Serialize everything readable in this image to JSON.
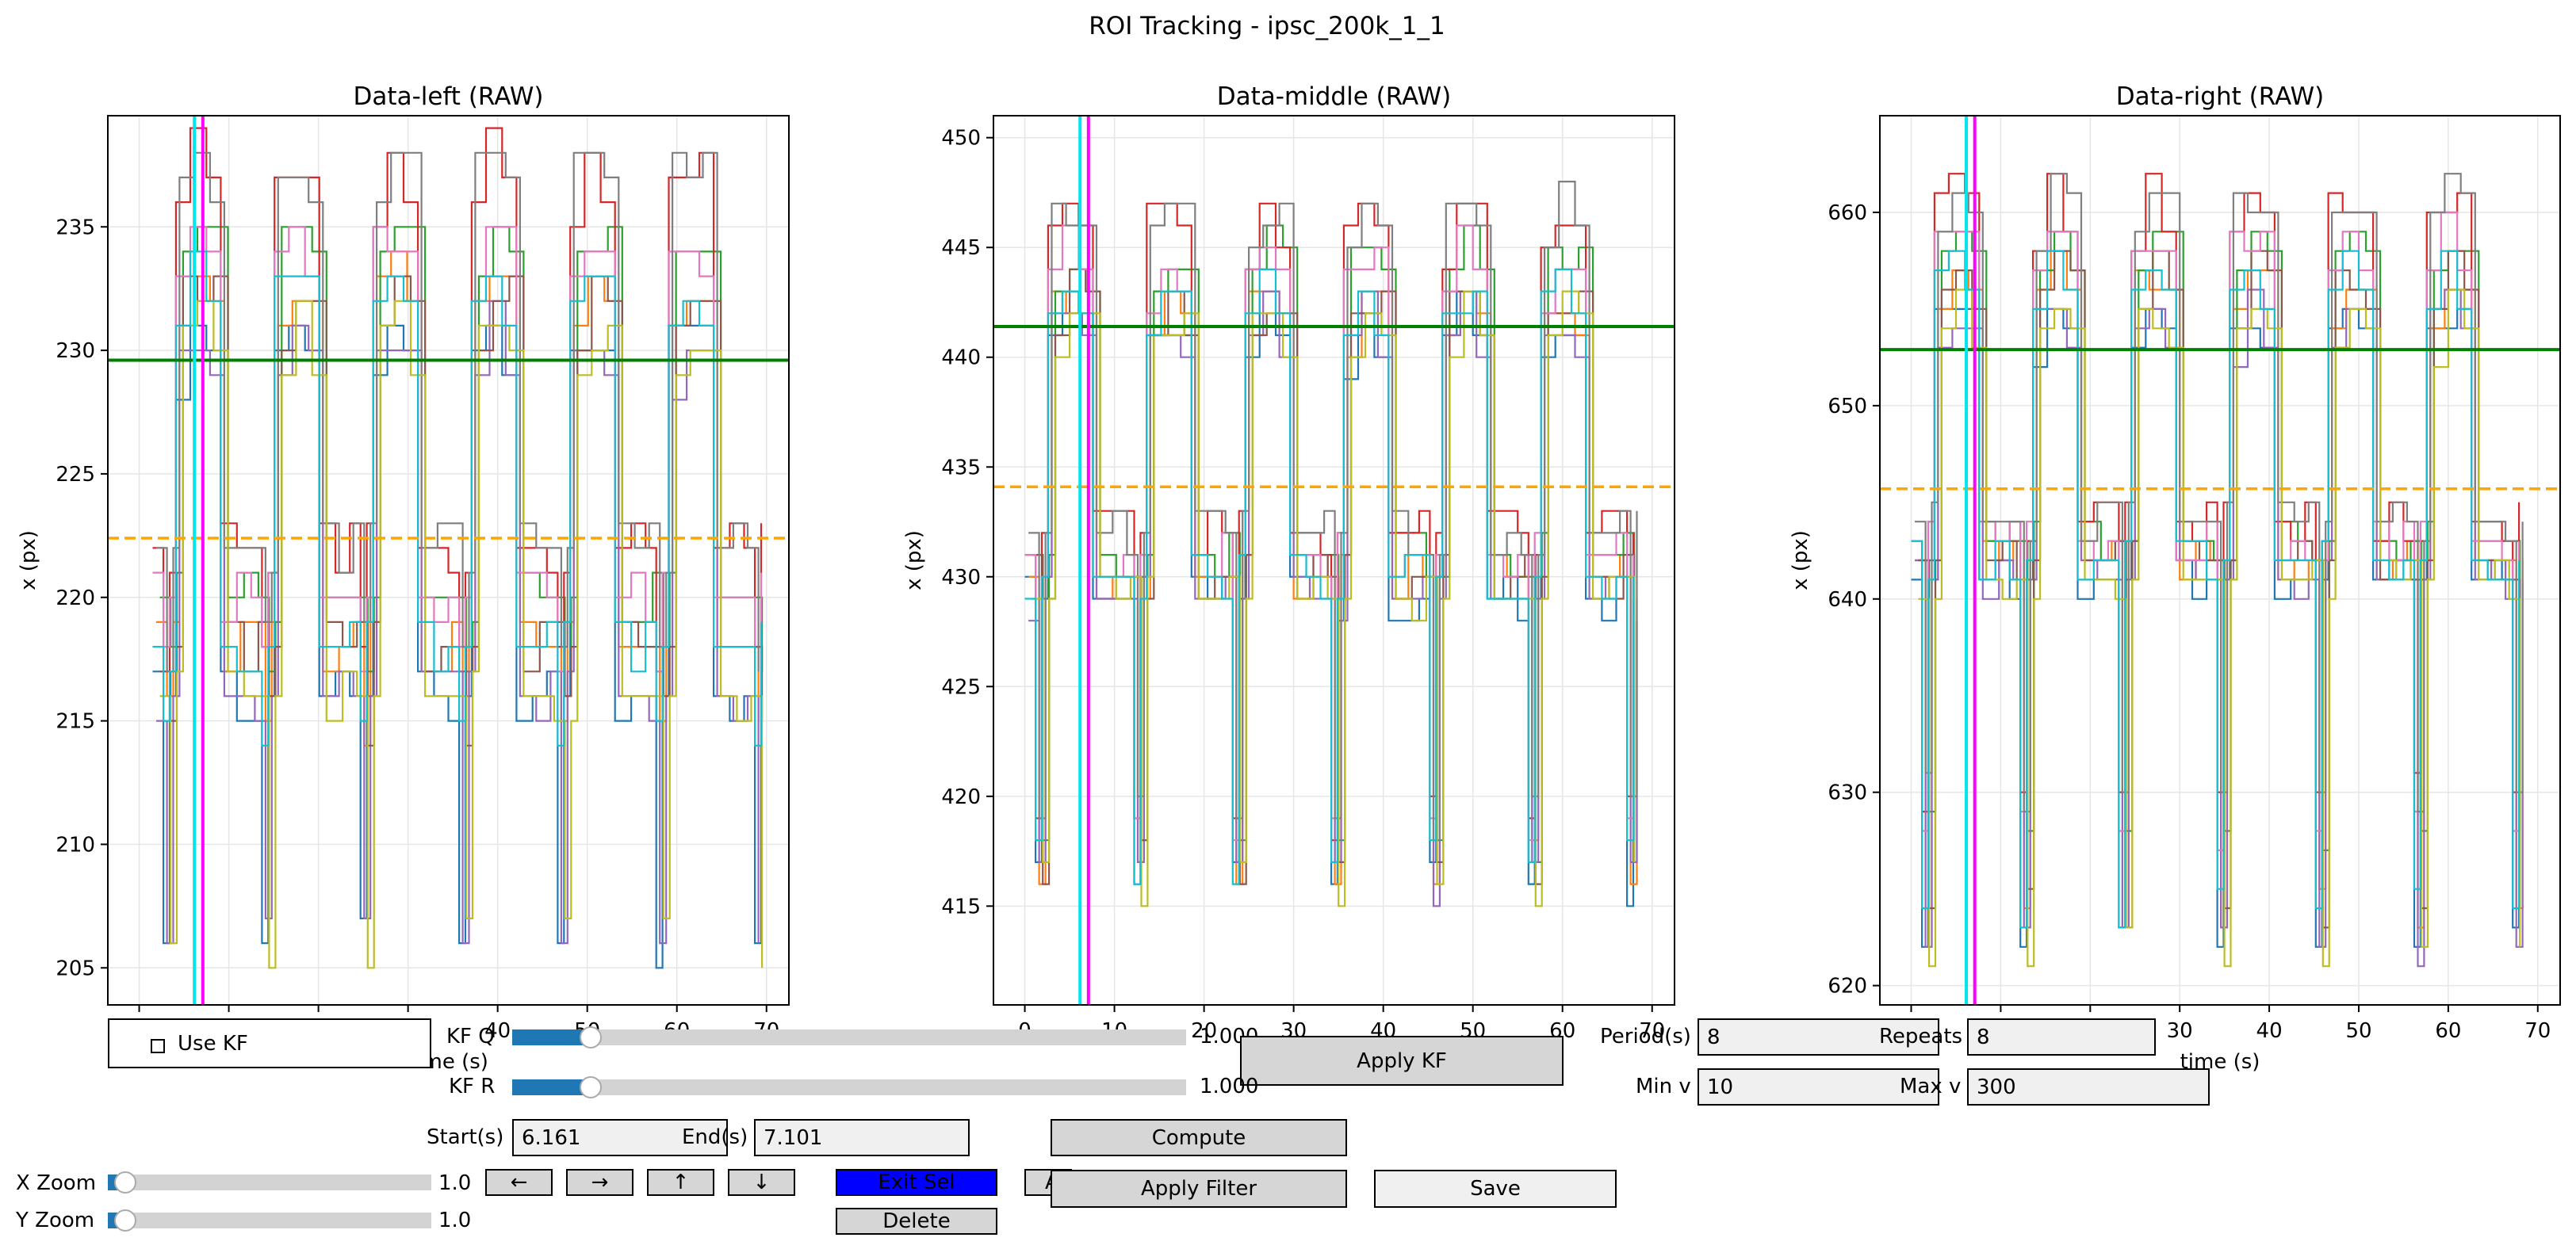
{
  "figure_title": "ROI Tracking - ipsc_200k_1_1",
  "chart_data": [
    {
      "type": "line",
      "title": "Data-left (RAW)",
      "xlabel": "time (s)",
      "ylabel": "x (px)",
      "xlim": [
        -3.5,
        72.5
      ],
      "ylim": [
        203.5,
        239.5
      ],
      "xticks": [
        0,
        10,
        20,
        30,
        40,
        50,
        60,
        70
      ],
      "yticks": [
        205,
        210,
        215,
        220,
        225,
        230,
        235
      ],
      "grid": true,
      "v_lines": [
        {
          "x": 6.161,
          "color": "#00e5ee"
        },
        {
          "x": 7.101,
          "color": "#ff00ff"
        }
      ],
      "h_lines": [
        {
          "y": 229.6,
          "color": "#008000",
          "style": "solid"
        },
        {
          "y": 222.4,
          "color": "#ffa500",
          "style": "dashed"
        }
      ],
      "pattern": {
        "low": [
          205,
          214,
          216,
          217
        ],
        "mid": [
          216,
          218,
          220,
          222
        ],
        "high": [
          231,
          233,
          235,
          238
        ],
        "period": 11.0,
        "start": 1.5,
        "end": 69.5
      },
      "series_count": 10
    },
    {
      "type": "line",
      "title": "Data-middle (RAW)",
      "xlabel": "time (s)",
      "ylabel": "x (px)",
      "xlim": [
        -3.5,
        72.5
      ],
      "ylim": [
        410.5,
        451.0
      ],
      "xticks": [
        0,
        10,
        20,
        30,
        40,
        50,
        60,
        70
      ],
      "yticks": [
        415,
        420,
        425,
        430,
        435,
        440,
        445,
        450
      ],
      "grid": true,
      "v_lines": [
        {
          "x": 6.161,
          "color": "#00e5ee"
        },
        {
          "x": 7.101,
          "color": "#ff00ff"
        }
      ],
      "h_lines": [
        {
          "y": 441.4,
          "color": "#008000",
          "style": "solid"
        },
        {
          "y": 434.1,
          "color": "#ffa500",
          "style": "dashed"
        }
      ],
      "pattern": {
        "low": [
          415,
          416,
          417,
          418
        ],
        "mid": [
          429,
          430,
          431,
          432
        ],
        "high": [
          442,
          443,
          445,
          447
        ],
        "period": 11.0,
        "start": 0.0,
        "end": 68.5
      },
      "series_count": 10
    },
    {
      "type": "line",
      "title": "Data-right (RAW)",
      "xlabel": "time (s)",
      "ylabel": "x (px)",
      "xlim": [
        -3.5,
        72.5
      ],
      "ylim": [
        619.0,
        665.0
      ],
      "xticks": [
        0,
        10,
        20,
        30,
        40,
        50,
        60,
        70
      ],
      "yticks": [
        620,
        630,
        640,
        650,
        660
      ],
      "grid": true,
      "v_lines": [
        {
          "x": 6.161,
          "color": "#00e5ee"
        },
        {
          "x": 7.101,
          "color": "#ff00ff"
        }
      ],
      "h_lines": [
        {
          "y": 652.9,
          "color": "#008000",
          "style": "solid"
        },
        {
          "y": 645.7,
          "color": "#ffa500",
          "style": "dashed"
        }
      ],
      "pattern": {
        "low": [
          621,
          623,
          627,
          629
        ],
        "mid": [
          641,
          642,
          643,
          644
        ],
        "high": [
          655,
          657,
          659,
          661
        ],
        "period": 11.0,
        "start": 0.0,
        "end": 68.5
      },
      "series_count": 10
    }
  ],
  "series_colors": [
    "#1f77b4",
    "#ff7f0e",
    "#2ca02c",
    "#d62728",
    "#9467bd",
    "#8c564b",
    "#e377c2",
    "#7f7f7f",
    "#bcbd22",
    "#17becf"
  ],
  "controls": {
    "use_kf_label": "Use KF",
    "kf_q_label": "KF Q",
    "kf_q_value": "1.000",
    "kf_q_fraction": 0.1,
    "kf_r_label": "KF R",
    "kf_r_value": "1.000",
    "kf_r_fraction": 0.1,
    "apply_kf_label": "Apply KF",
    "period_label": "Period(s)",
    "period_value": "8",
    "repeats_label": "Repeats",
    "repeats_value": "8",
    "minv_label": "Min v",
    "minv_value": "10",
    "maxv_label": "Max v",
    "maxv_value": "300",
    "start_label": "Start(s)",
    "start_value": "6.161",
    "end_label": "End(s)",
    "end_value": "7.101",
    "compute_label": "Compute",
    "xzoom_label": "X Zoom",
    "xzoom_value": "1.0",
    "xzoom_fraction": 0.02,
    "yzoom_label": "Y Zoom",
    "yzoom_value": "1.0",
    "yzoom_fraction": 0.02,
    "arrow_left": "←",
    "arrow_right": "→",
    "arrow_up": "↑",
    "arrow_down": "↓",
    "exit_sel_label": "Exit Sel",
    "hidden_btn_label": "A",
    "apply_filter_label": "Apply Filter",
    "save_label": "Save",
    "delete_label": "Delete"
  }
}
